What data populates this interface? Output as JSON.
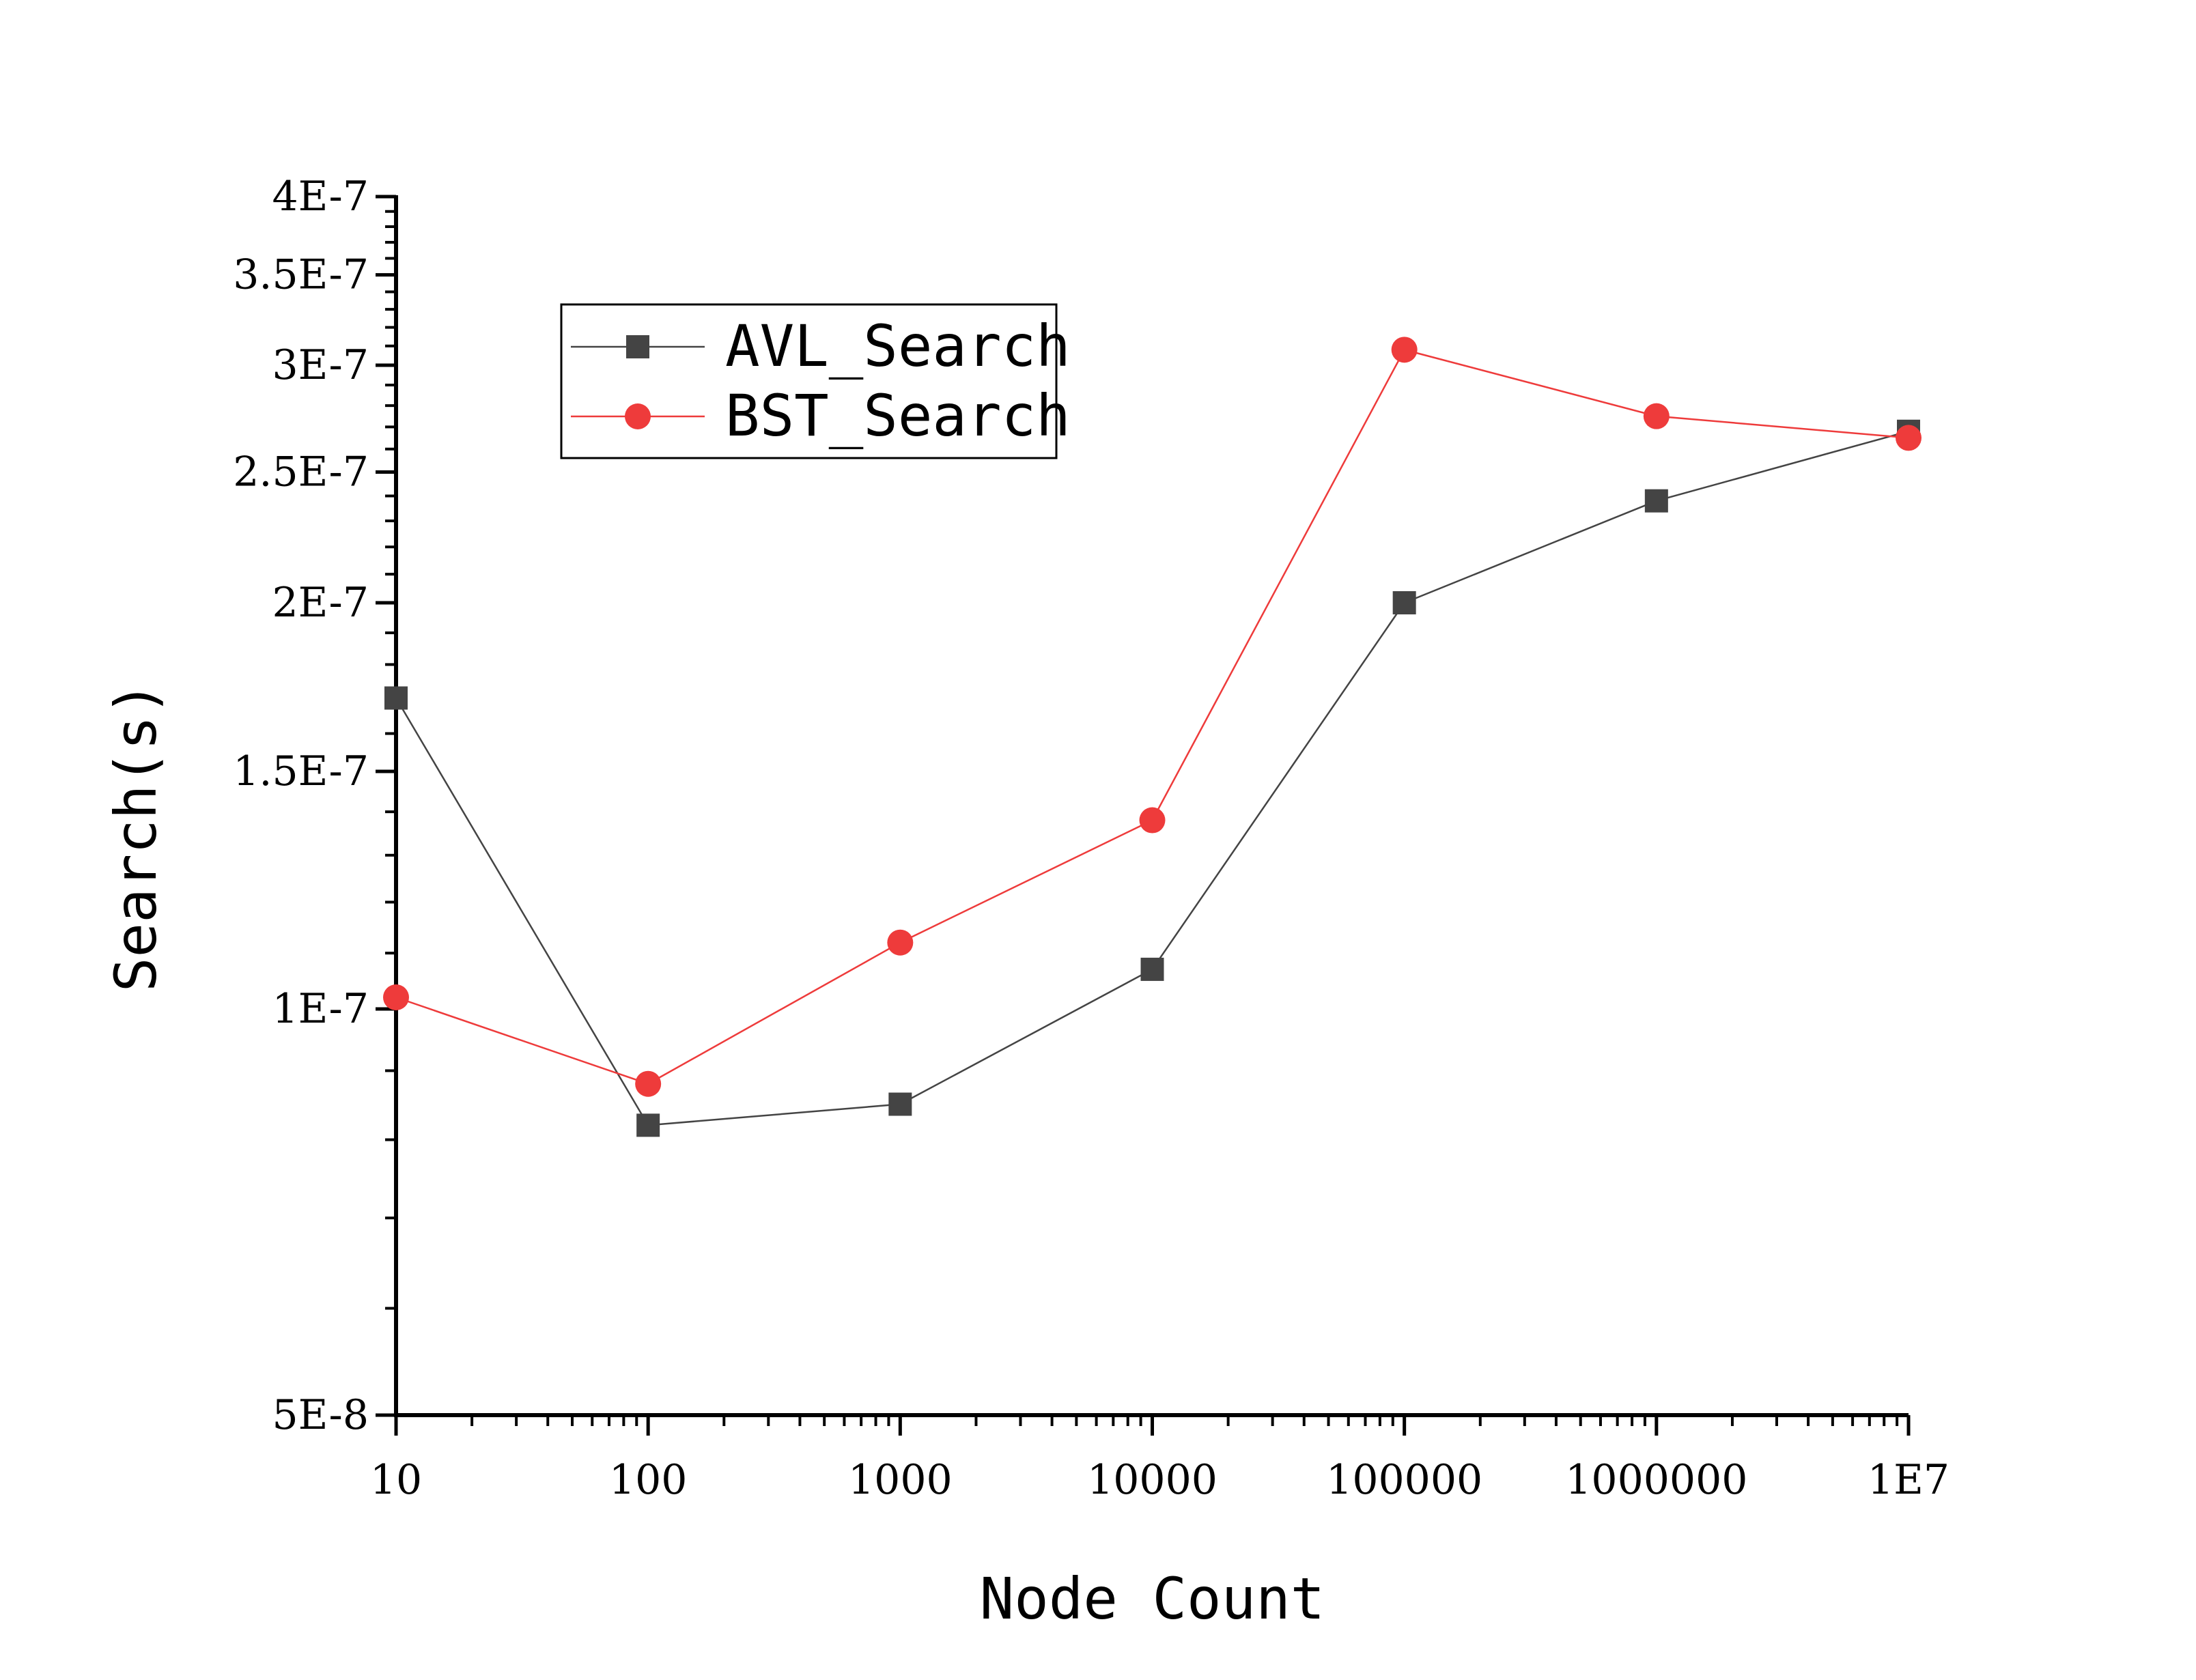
{
  "chart_data": {
    "type": "line",
    "title": "",
    "xlabel": "Node Count",
    "ylabel": "Search(s)",
    "x_scale": "log",
    "y_scale": "log",
    "xlim": [
      10,
      10000000
    ],
    "ylim": [
      5e-08,
      4e-07
    ],
    "x_tick_values": [
      10,
      100,
      1000,
      10000,
      100000,
      1000000,
      10000000
    ],
    "x_tick_labels": [
      "10",
      "100",
      "1000",
      "10000",
      "100000",
      "1000000",
      "1E7"
    ],
    "y_tick_values": [
      5e-08,
      1e-07,
      1.5e-07,
      2e-07,
      2.5e-07,
      3e-07,
      3.5e-07,
      4e-07
    ],
    "y_tick_labels": [
      "5E-8",
      "1E-7",
      "1.5E-7",
      "2E-7",
      "2.5E-7",
      "3E-7",
      "3.5E-7",
      "4E-7"
    ],
    "grid": false,
    "legend_position": "top-left",
    "x": [
      10,
      100,
      1000,
      10000,
      100000,
      1000000,
      10000000
    ],
    "series": [
      {
        "name": "AVL_Search",
        "color": "#444444",
        "marker": "square",
        "values": [
          1.7e-07,
          8.2e-08,
          8.5e-08,
          1.07e-07,
          2e-07,
          2.38e-07,
          2.68e-07
        ]
      },
      {
        "name": "BST_Search",
        "color": "#ee3b3b",
        "marker": "circle",
        "values": [
          1.02e-07,
          8.8e-08,
          1.12e-07,
          1.38e-07,
          3.08e-07,
          2.75e-07,
          2.65e-07
        ]
      }
    ]
  }
}
